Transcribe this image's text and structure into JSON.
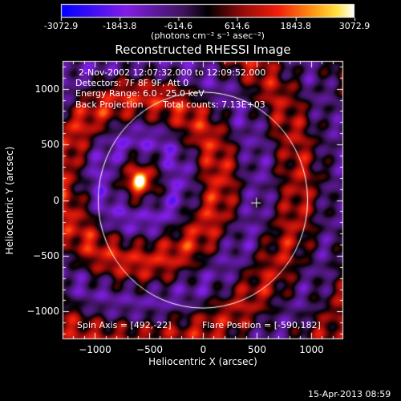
{
  "chart_data": {
    "type": "heatmap",
    "title": "Reconstructed RHESSI Image",
    "xlabel": "Heliocentric X (arcsec)",
    "ylabel": "Heliocentric Y (arcsec)",
    "xlim": [
      -1300,
      1300
    ],
    "ylim": [
      -1250,
      1250
    ],
    "x_ticks": [
      -1000,
      -500,
      0,
      500,
      1000
    ],
    "y_ticks": [
      -1000,
      -500,
      0,
      500,
      1000
    ],
    "colorbar": {
      "ticks": [
        "-3072.9",
        "-1843.8",
        "-614.6",
        "614.6",
        "1843.8",
        "3072.9"
      ],
      "unit": "(photons cm⁻² s⁻¹ asec⁻²)",
      "min": -3072.9,
      "max": 3072.9
    },
    "info_lines": [
      "2-Nov-2002 12:07:32.000 to 12:09:52.000",
      "Detectors: 7F 8F 9F, Att 0",
      "Energy Range: 6.0 - 25.0 keV",
      "Back Projection"
    ],
    "total_counts": "Total counts: 7.13E+03",
    "spin_axis": "Spin Axis = [492,-22]",
    "flare_position": "Flare Position = [-590,182]",
    "source": {
      "x": -590,
      "y": 182
    },
    "spin_axis_point": {
      "x": 492,
      "y": -22
    },
    "solar_limb_radius_arcsec": 970,
    "grid": false
  },
  "timestamp": "15-Apr-2013 08:59"
}
